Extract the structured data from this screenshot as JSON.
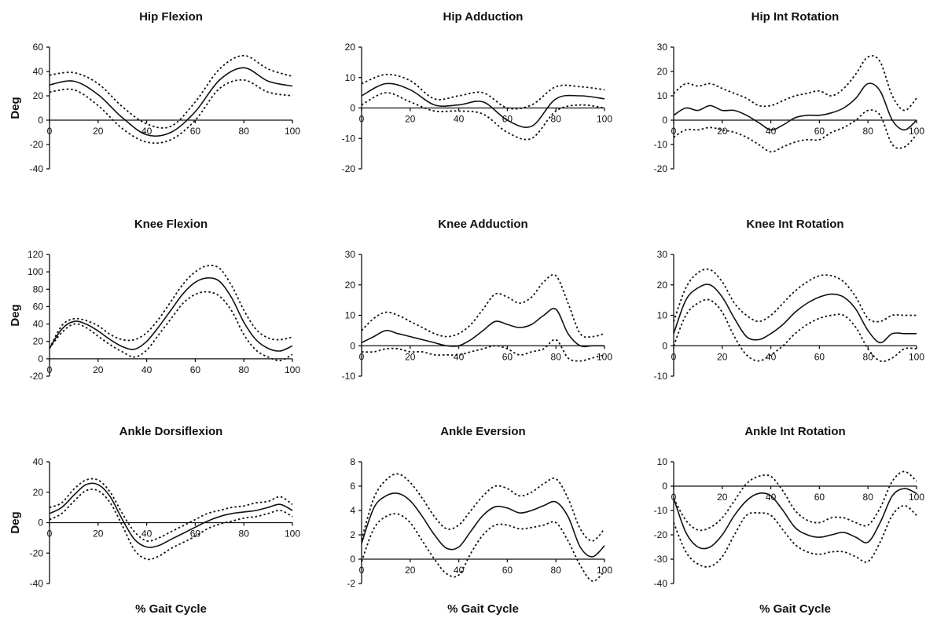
{
  "chart_data": [
    {
      "type": "line",
      "title": "Hip Flexion",
      "ylabel": "Deg",
      "xlabel": "",
      "xlim": [
        0,
        100
      ],
      "ylim": [
        -40,
        60
      ],
      "x_ticks": [
        0,
        20,
        40,
        60,
        80,
        100
      ],
      "y_ticks": [
        -40,
        -20,
        0,
        20,
        40,
        60
      ],
      "x": [
        0,
        10,
        20,
        30,
        40,
        50,
        60,
        70,
        80,
        90,
        100
      ],
      "series": [
        {
          "style": "upper",
          "values": [
            37,
            39,
            30,
            11,
            -3,
            -5,
            15,
            42,
            53,
            42,
            36
          ]
        },
        {
          "style": "mean",
          "values": [
            29,
            32,
            21,
            2,
            -12,
            -10,
            7,
            33,
            43,
            32,
            28
          ]
        },
        {
          "style": "lower",
          "values": [
            23,
            25,
            12,
            -7,
            -18,
            -16,
            0,
            26,
            33,
            23,
            20
          ]
        }
      ]
    },
    {
      "type": "line",
      "title": "Hip Adduction",
      "ylabel": "",
      "xlabel": "",
      "xlim": [
        0,
        100
      ],
      "ylim": [
        -20,
        20
      ],
      "x_ticks": [
        0,
        20,
        40,
        60,
        80,
        100
      ],
      "y_ticks": [
        -20,
        -10,
        0,
        10,
        20
      ],
      "x": [
        0,
        10,
        20,
        30,
        40,
        50,
        60,
        70,
        80,
        90,
        100
      ],
      "series": [
        {
          "style": "upper",
          "values": [
            8,
            11,
            9,
            3,
            4,
            5,
            0,
            1,
            7,
            7,
            6
          ]
        },
        {
          "style": "mean",
          "values": [
            4,
            8,
            6,
            1,
            1,
            2,
            -4,
            -6,
            3,
            4,
            3
          ]
        },
        {
          "style": "lower",
          "values": [
            1,
            5,
            2,
            -1,
            -1,
            -2,
            -8,
            -10,
            -1,
            1,
            0
          ]
        }
      ]
    },
    {
      "type": "line",
      "title": "Hip Int Rotation",
      "ylabel": "",
      "xlabel": "",
      "xlim": [
        0,
        100
      ],
      "ylim": [
        -20,
        30
      ],
      "x_ticks": [
        0,
        20,
        40,
        60,
        80,
        100
      ],
      "y_ticks": [
        -20,
        -10,
        0,
        10,
        20,
        30
      ],
      "x": [
        0,
        5,
        10,
        15,
        20,
        25,
        30,
        35,
        40,
        45,
        50,
        55,
        60,
        65,
        70,
        75,
        80,
        85,
        90,
        95,
        100
      ],
      "series": [
        {
          "style": "upper",
          "values": [
            11,
            15,
            14,
            15,
            13,
            11,
            9,
            6,
            6,
            8,
            10,
            11,
            12,
            10,
            13,
            19,
            26,
            24,
            10,
            4,
            9
          ]
        },
        {
          "style": "mean",
          "values": [
            2,
            5,
            4,
            6,
            4,
            4,
            2,
            -1,
            -4,
            -2,
            1,
            2,
            2,
            3,
            5,
            9,
            15,
            12,
            0,
            -4,
            0
          ]
        },
        {
          "style": "lower",
          "values": [
            -7,
            -4,
            -4,
            -3,
            -4,
            -5,
            -7,
            -10,
            -13,
            -11,
            -9,
            -8,
            -8,
            -5,
            -3,
            0,
            4,
            2,
            -10,
            -11,
            -6
          ]
        }
      ]
    },
    {
      "type": "line",
      "title": "Knee Flexion",
      "ylabel": "Deg",
      "xlabel": "",
      "xlim": [
        0,
        100
      ],
      "ylim": [
        -20,
        120
      ],
      "x_ticks": [
        0,
        20,
        40,
        60,
        80,
        100
      ],
      "y_ticks": [
        -20,
        0,
        20,
        40,
        60,
        80,
        100,
        120
      ],
      "x": [
        0,
        5,
        10,
        15,
        20,
        25,
        30,
        35,
        40,
        45,
        50,
        55,
        60,
        65,
        70,
        75,
        80,
        85,
        90,
        95,
        100
      ],
      "series": [
        {
          "style": "upper",
          "values": [
            12,
            38,
            46,
            44,
            38,
            28,
            22,
            22,
            30,
            46,
            66,
            86,
            100,
            107,
            104,
            84,
            56,
            34,
            24,
            22,
            25
          ]
        },
        {
          "style": "mean",
          "values": [
            12,
            34,
            43,
            40,
            32,
            22,
            14,
            11,
            20,
            37,
            56,
            75,
            88,
            93,
            89,
            70,
            42,
            22,
            12,
            9,
            15
          ]
        },
        {
          "style": "lower",
          "values": [
            12,
            30,
            40,
            36,
            26,
            16,
            8,
            2,
            10,
            28,
            46,
            64,
            74,
            77,
            72,
            55,
            28,
            10,
            2,
            -2,
            5
          ]
        }
      ]
    },
    {
      "type": "line",
      "title": "Knee Adduction",
      "ylabel": "",
      "xlabel": "",
      "xlim": [
        0,
        100
      ],
      "ylim": [
        -10,
        30
      ],
      "x_ticks": [
        0,
        20,
        40,
        60,
        80,
        100
      ],
      "y_ticks": [
        -10,
        0,
        10,
        20,
        30
      ],
      "x": [
        0,
        5,
        10,
        15,
        20,
        25,
        30,
        35,
        40,
        45,
        50,
        55,
        60,
        65,
        70,
        75,
        80,
        85,
        90,
        95,
        100
      ],
      "series": [
        {
          "style": "upper",
          "values": [
            5,
            9,
            11,
            10,
            8,
            6,
            4,
            3,
            4,
            7,
            12,
            17,
            16,
            14,
            16,
            21,
            23,
            14,
            4,
            3,
            4
          ]
        },
        {
          "style": "mean",
          "values": [
            1,
            3,
            5,
            4,
            3,
            2,
            1,
            0,
            0,
            2,
            5,
            8,
            7,
            6,
            7,
            10,
            12,
            4,
            0,
            0,
            0
          ]
        },
        {
          "style": "lower",
          "values": [
            -2,
            -2,
            -1,
            -1,
            -2,
            -2,
            -3,
            -3,
            -3,
            -2,
            -1,
            0,
            -1,
            -3,
            -2,
            -1,
            2,
            -4,
            -5,
            -4,
            -3
          ]
        }
      ]
    },
    {
      "type": "line",
      "title": "Knee Int Rotation",
      "ylabel": "",
      "xlabel": "",
      "xlim": [
        0,
        100
      ],
      "ylim": [
        -10,
        30
      ],
      "x_ticks": [
        0,
        20,
        40,
        60,
        80,
        100
      ],
      "y_ticks": [
        -10,
        0,
        10,
        20,
        30
      ],
      "x": [
        0,
        5,
        10,
        15,
        20,
        25,
        30,
        35,
        40,
        45,
        50,
        55,
        60,
        65,
        70,
        75,
        80,
        85,
        90,
        95,
        100
      ],
      "series": [
        {
          "style": "upper",
          "values": [
            8,
            19,
            24,
            25,
            21,
            14,
            10,
            8,
            10,
            14,
            18,
            21,
            23,
            23,
            21,
            16,
            9,
            8,
            10,
            10,
            10
          ]
        },
        {
          "style": "mean",
          "values": [
            4,
            15,
            19,
            20,
            16,
            9,
            3,
            2,
            4,
            7,
            11,
            14,
            16,
            17,
            16,
            12,
            5,
            1,
            4,
            4,
            4
          ]
        },
        {
          "style": "lower",
          "values": [
            0,
            10,
            14,
            15,
            11,
            3,
            -3,
            -5,
            -3,
            0,
            4,
            7,
            9,
            10,
            10,
            6,
            -1,
            -5,
            -4,
            -1,
            -1
          ]
        }
      ]
    },
    {
      "type": "line",
      "title": "Ankle Dorsiflexion",
      "ylabel": "Deg",
      "xlabel": "% Gait Cycle",
      "xlim": [
        0,
        100
      ],
      "ylim": [
        -40,
        40
      ],
      "x_ticks": [
        0,
        20,
        40,
        60,
        80,
        100
      ],
      "y_ticks": [
        -40,
        -20,
        0,
        20,
        40
      ],
      "x": [
        0,
        5,
        10,
        15,
        20,
        25,
        30,
        35,
        40,
        45,
        50,
        55,
        60,
        65,
        70,
        75,
        80,
        85,
        90,
        95,
        100
      ],
      "series": [
        {
          "style": "upper",
          "values": [
            10,
            13,
            22,
            28,
            28,
            20,
            6,
            -6,
            -12,
            -10,
            -6,
            -2,
            2,
            6,
            8,
            10,
            11,
            13,
            14,
            17,
            12
          ]
        },
        {
          "style": "mean",
          "values": [
            6,
            10,
            18,
            25,
            25,
            17,
            2,
            -11,
            -16,
            -15,
            -11,
            -7,
            -3,
            1,
            4,
            6,
            7,
            8,
            10,
            12,
            8
          ]
        },
        {
          "style": "lower",
          "values": [
            2,
            6,
            14,
            21,
            21,
            13,
            -2,
            -18,
            -24,
            -22,
            -17,
            -13,
            -9,
            -4,
            -1,
            1,
            3,
            4,
            6,
            8,
            4
          ]
        }
      ]
    },
    {
      "type": "line",
      "title": "Ankle Eversion",
      "ylabel": "",
      "xlabel": "% Gait Cycle",
      "xlim": [
        0,
        100
      ],
      "ylim": [
        -2,
        8
      ],
      "x_ticks": [
        0,
        20,
        40,
        60,
        80,
        100
      ],
      "y_ticks": [
        -2,
        0,
        2,
        4,
        6,
        8
      ],
      "x": [
        0,
        5,
        10,
        15,
        20,
        25,
        30,
        35,
        40,
        45,
        50,
        55,
        60,
        65,
        70,
        75,
        80,
        85,
        90,
        95,
        100
      ],
      "series": [
        {
          "style": "upper",
          "values": [
            1.6,
            5,
            6.5,
            7,
            6.3,
            5,
            3.5,
            2.5,
            2.8,
            4,
            5.2,
            6,
            5.8,
            5.2,
            5.5,
            6.2,
            6.6,
            5,
            2.5,
            1.5,
            2.5
          ]
        },
        {
          "style": "mean",
          "values": [
            1.3,
            4.2,
            5.2,
            5.4,
            4.8,
            3.5,
            2,
            0.9,
            1,
            2.3,
            3.6,
            4.3,
            4.2,
            3.8,
            4,
            4.4,
            4.7,
            3.5,
            1,
            0.2,
            1.1
          ]
        },
        {
          "style": "lower",
          "values": [
            -0.2,
            2.5,
            3.5,
            3.7,
            3,
            1.5,
            0,
            -1.2,
            -1.3,
            0.5,
            2,
            2.8,
            2.8,
            2.5,
            2.6,
            2.8,
            3,
            1.5,
            -0.5,
            -1.8,
            -1
          ]
        }
      ]
    },
    {
      "type": "line",
      "title": "Ankle Int Rotation",
      "ylabel": "",
      "xlabel": "% Gait Cycle",
      "xlim": [
        0,
        100
      ],
      "ylim": [
        -40,
        10
      ],
      "x_ticks": [
        0,
        20,
        40,
        60,
        80,
        100
      ],
      "y_ticks": [
        -40,
        -30,
        -20,
        -10,
        0,
        10
      ],
      "x": [
        0,
        5,
        10,
        15,
        20,
        25,
        30,
        35,
        40,
        45,
        50,
        55,
        60,
        65,
        70,
        75,
        80,
        85,
        90,
        95,
        100
      ],
      "series": [
        {
          "style": "upper",
          "values": [
            -5,
            -14,
            -18,
            -17,
            -13,
            -6,
            1,
            4,
            4,
            -2,
            -10,
            -14,
            -15,
            -13,
            -13,
            -15,
            -16,
            -9,
            2,
            6,
            2
          ]
        },
        {
          "style": "mean",
          "values": [
            -5,
            -19,
            -25,
            -25,
            -20,
            -12,
            -6,
            -3,
            -4,
            -10,
            -17,
            -20,
            -21,
            -20,
            -19,
            -21,
            -23,
            -15,
            -4,
            -1,
            -3
          ]
        },
        {
          "style": "lower",
          "values": [
            -15,
            -27,
            -32,
            -33,
            -29,
            -20,
            -12,
            -11,
            -12,
            -18,
            -24,
            -27,
            -28,
            -27,
            -27,
            -29,
            -31,
            -23,
            -12,
            -8,
            -12
          ]
        }
      ]
    }
  ]
}
